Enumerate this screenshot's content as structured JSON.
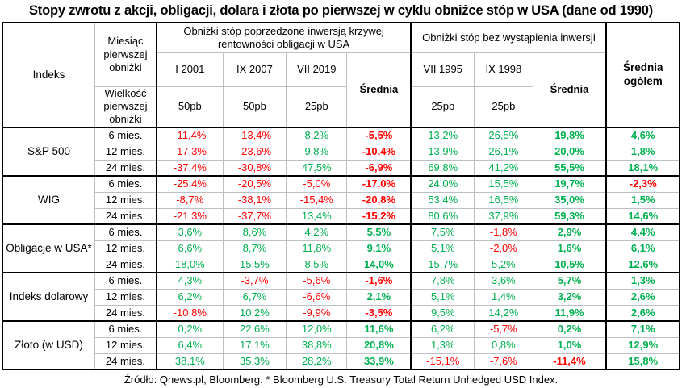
{
  "title": "Stopy zwrotu z akcji, obligacji, dolara i złota po pierwszej w cyklu obniżce stóp w USA (dane od 1990)",
  "footer": "Źródło: Qnews.pl, Bloomberg. * Bloomberg U.S. Treasury Total Return Unhedged USD Index.",
  "colors": {
    "positive": "#00B050",
    "negative": "#FF0000",
    "grid": "#BFBFBF",
    "frame": "#000000"
  },
  "chart_data": {
    "type": "table",
    "title": "Stopy zwrotu z akcji, obligacji, dolara i złota po pierwszej w cyklu obniżce stóp w USA (dane od 1990)",
    "header": {
      "indeks_label": "Indeks",
      "month_label": "Miesiąc pierwszej obniżki",
      "size_label": "Wielkość pierwszej obniżki",
      "group1_title": "Obniżki stóp poprzedzone inwersją krzywej rentowności obligacji w USA",
      "group2_title": "Obniżki stóp bez wystąpienia inwersji",
      "group1_months": [
        "I 2001",
        "IX 2007",
        "VII 2019"
      ],
      "group1_sizes": [
        "50pb",
        "50pb",
        "25pb"
      ],
      "group2_months": [
        "VII 1995",
        "IX 1998"
      ],
      "group2_sizes": [
        "25pb",
        "25pb"
      ],
      "average_label": "Średnia",
      "overall_average_label": "Średnia ogółem"
    },
    "horizons": [
      "6 mies.",
      "12 mies.",
      "24 mies."
    ],
    "columns_order": [
      "I 2001 (50pb)",
      "IX 2007 (50pb)",
      "VII 2019 (25pb)",
      "Średnia (inwersja)",
      "VII 1995 (25pb)",
      "IX 1998 (25pb)",
      "Średnia (bez inwersji)",
      "Średnia ogółem"
    ],
    "row_groups": [
      {
        "index": "S&P 500",
        "rows": [
          {
            "horizon": "6 mies.",
            "values": [
              "-11,4%",
              "-13,4%",
              "8,2%",
              "-5,5%",
              "13,2%",
              "26,5%",
              "19,8%",
              "4,6%"
            ]
          },
          {
            "horizon": "12 mies.",
            "values": [
              "-17,3%",
              "-23,6%",
              "9,8%",
              "-10,4%",
              "13,9%",
              "26,1%",
              "20,0%",
              "1,8%"
            ]
          },
          {
            "horizon": "24 mies.",
            "values": [
              "-37,4%",
              "-30,8%",
              "47,5%",
              "-6,9%",
              "69,8%",
              "41,2%",
              "55,5%",
              "18,1%"
            ]
          }
        ]
      },
      {
        "index": "WIG",
        "rows": [
          {
            "horizon": "6 mies.",
            "values": [
              "-25,4%",
              "-20,5%",
              "-5,0%",
              "-17,0%",
              "24,0%",
              "15,5%",
              "19,7%",
              "-2,3%"
            ]
          },
          {
            "horizon": "12 mies.",
            "values": [
              "-8,7%",
              "-38,1%",
              "-15,4%",
              "-20,8%",
              "53,4%",
              "16,5%",
              "35,0%",
              "1,5%"
            ]
          },
          {
            "horizon": "24 mies.",
            "values": [
              "-21,3%",
              "-37,7%",
              "13,4%",
              "-15,2%",
              "80,6%",
              "37,9%",
              "59,3%",
              "14,6%"
            ]
          }
        ]
      },
      {
        "index": "Obligacje w USA*",
        "rows": [
          {
            "horizon": "6 mies.",
            "values": [
              "3,6%",
              "8,6%",
              "4,2%",
              "5,5%",
              "7,5%",
              "-1,8%",
              "2,9%",
              "4,4%"
            ]
          },
          {
            "horizon": "12 mies.",
            "values": [
              "6,6%",
              "8,7%",
              "11,8%",
              "9,1%",
              "5,1%",
              "-2,0%",
              "1,6%",
              "6,1%"
            ]
          },
          {
            "horizon": "24 mies.",
            "values": [
              "18,0%",
              "15,5%",
              "8,5%",
              "14,0%",
              "15,7%",
              "5,2%",
              "10,5%",
              "12,6%"
            ]
          }
        ]
      },
      {
        "index": "Indeks dolarowy",
        "rows": [
          {
            "horizon": "6 mies.",
            "values": [
              "4,3%",
              "-3,7%",
              "-5,6%",
              "-1,6%",
              "7,8%",
              "3,6%",
              "5,7%",
              "1,3%"
            ]
          },
          {
            "horizon": "12 mies.",
            "values": [
              "6,2%",
              "6,7%",
              "-6,6%",
              "2,1%",
              "5,1%",
              "1,4%",
              "3,2%",
              "2,6%"
            ]
          },
          {
            "horizon": "24 mies.",
            "values": [
              "-10,8%",
              "10,2%",
              "-9,9%",
              "-3,5%",
              "9,5%",
              "14,2%",
              "11,9%",
              "2,6%"
            ]
          }
        ]
      },
      {
        "index": "Złoto (w USD)",
        "rows": [
          {
            "horizon": "6 mies.",
            "values": [
              "0,2%",
              "22,6%",
              "12,0%",
              "11,6%",
              "6,2%",
              "-5,7%",
              "0,2%",
              "7,1%"
            ]
          },
          {
            "horizon": "12 mies.",
            "values": [
              "6,4%",
              "17,1%",
              "38,8%",
              "20,8%",
              "1,3%",
              "0,8%",
              "1,0%",
              "12,9%"
            ]
          },
          {
            "horizon": "24 mies.",
            "values": [
              "38,1%",
              "35,3%",
              "28,2%",
              "33,9%",
              "-15,1%",
              "-7,6%",
              "-11,4%",
              "15,8%"
            ]
          }
        ]
      }
    ],
    "layout": {
      "average_column_indices": [
        3,
        6,
        7
      ],
      "bold_columns": "averages and overall average",
      "negative_color_rule": "values starting with minus are red, others green"
    },
    "source": "Źródło: Qnews.pl, Bloomberg. * Bloomberg U.S. Treasury Total Return Unhedged USD Index."
  }
}
